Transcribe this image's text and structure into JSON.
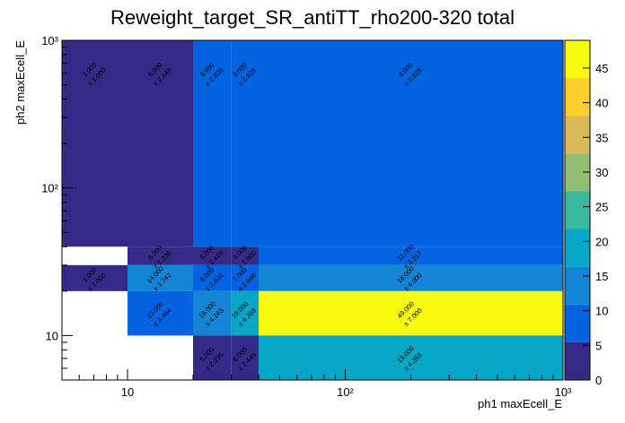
{
  "chart_data": {
    "type": "heatmap",
    "title": "Reweight_target_SR_antiTT_rho200-320 total",
    "xlabel": "ph1 maxEcell_E",
    "ylabel": "ph2 maxEcell_E",
    "x_scale": "log",
    "y_scale": "log",
    "xlim": [
      5,
      1000
    ],
    "ylim": [
      5,
      1000
    ],
    "zlim": [
      0,
      49
    ],
    "x_ticks": [
      {
        "v": 10,
        "label": "10"
      },
      {
        "v": 100,
        "label": "10²"
      },
      {
        "v": 1000,
        "label": "10³"
      }
    ],
    "y_ticks": [
      {
        "v": 10,
        "label": "10"
      },
      {
        "v": 100,
        "label": "10²"
      },
      {
        "v": 1000,
        "label": "10³"
      }
    ],
    "z_ticks": [
      0,
      5,
      10,
      15,
      20,
      25,
      30,
      35,
      40,
      45
    ],
    "colormap": [
      "#352a87",
      "#0363e1",
      "#1485d4",
      "#06a7c6",
      "#38b99e",
      "#92bf73",
      "#d9ba56",
      "#fcce2e",
      "#f9fb0e"
    ],
    "cells": [
      {
        "x": [
          5,
          10
        ],
        "y": [
          40,
          1000
        ],
        "value": 1,
        "error": 1,
        "label": "1.000",
        "err_label": "± 1.000"
      },
      {
        "x": [
          10,
          20
        ],
        "y": [
          40,
          1000
        ],
        "value": 6,
        "error": 2.449,
        "label": "6.000",
        "err_label": "± 2.449"
      },
      {
        "x": [
          20,
          30
        ],
        "y": [
          40,
          1000
        ],
        "value": 8,
        "error": 2.828,
        "label": "8.000",
        "err_label": "± 2.828"
      },
      {
        "x": [
          30,
          40
        ],
        "y": [
          40,
          1000
        ],
        "value": 8,
        "error": 2.828,
        "label": "8.000",
        "err_label": "± 2.828"
      },
      {
        "x": [
          40,
          1000
        ],
        "y": [
          40,
          1000
        ],
        "value": 8,
        "error": 2.828,
        "label": "8.000",
        "err_label": "± 2.828"
      },
      {
        "x": [
          10,
          20
        ],
        "y": [
          30,
          40
        ],
        "value": 5,
        "error": 2.236,
        "label": "5.000",
        "err_label": "± 2.236"
      },
      {
        "x": [
          20,
          30
        ],
        "y": [
          30,
          40
        ],
        "value": 6,
        "error": 2.449,
        "label": "6.000",
        "err_label": "± 2.449"
      },
      {
        "x": [
          30,
          40
        ],
        "y": [
          30,
          40
        ],
        "value": 4,
        "error": 2,
        "label": "4.000",
        "err_label": "± 2.000"
      },
      {
        "x": [
          40,
          1000
        ],
        "y": [
          30,
          40
        ],
        "value": 11,
        "error": 3.317,
        "label": "11.000",
        "err_label": "± 3.317"
      },
      {
        "x": [
          5,
          10
        ],
        "y": [
          20,
          30
        ],
        "value": 1,
        "error": 1,
        "label": "1.000",
        "err_label": "± 1.000"
      },
      {
        "x": [
          10,
          20
        ],
        "y": [
          20,
          30
        ],
        "value": 14,
        "error": 3.742,
        "label": "14.000",
        "err_label": "± 3.742"
      },
      {
        "x": [
          20,
          30
        ],
        "y": [
          20,
          30
        ],
        "value": 8,
        "error": 2.828,
        "label": "8.000",
        "err_label": "± 2.828"
      },
      {
        "x": [
          30,
          40
        ],
        "y": [
          20,
          30
        ],
        "value": 7,
        "error": 2.646,
        "label": "7.000",
        "err_label": "± 2.646"
      },
      {
        "x": [
          40,
          1000
        ],
        "y": [
          20,
          30
        ],
        "value": 16,
        "error": 4,
        "label": "16.000",
        "err_label": "± 4.000"
      },
      {
        "x": [
          10,
          20
        ],
        "y": [
          10,
          20
        ],
        "value": 12,
        "error": 3.464,
        "label": "12.000",
        "err_label": "± 3.464"
      },
      {
        "x": [
          20,
          30
        ],
        "y": [
          10,
          20
        ],
        "value": 18,
        "error": 4.243,
        "label": "18.000",
        "err_label": "± 4.243"
      },
      {
        "x": [
          30,
          40
        ],
        "y": [
          10,
          20
        ],
        "value": 19,
        "error": 4.359,
        "label": "19.000",
        "err_label": "± 4.359"
      },
      {
        "x": [
          40,
          1000
        ],
        "y": [
          10,
          20
        ],
        "value": 49,
        "error": 7,
        "label": "49.000",
        "err_label": "± 7.000"
      },
      {
        "x": [
          20,
          30
        ],
        "y": [
          5,
          10
        ],
        "value": 5,
        "error": 2.236,
        "label": "5.000",
        "err_label": "± 2.236"
      },
      {
        "x": [
          30,
          40
        ],
        "y": [
          5,
          10
        ],
        "value": 6,
        "error": 2.449,
        "label": "6.000",
        "err_label": "± 2.449"
      },
      {
        "x": [
          40,
          1000
        ],
        "y": [
          5,
          10
        ],
        "value": 19,
        "error": 4.359,
        "label": "19.000",
        "err_label": "± 4.359"
      }
    ]
  }
}
